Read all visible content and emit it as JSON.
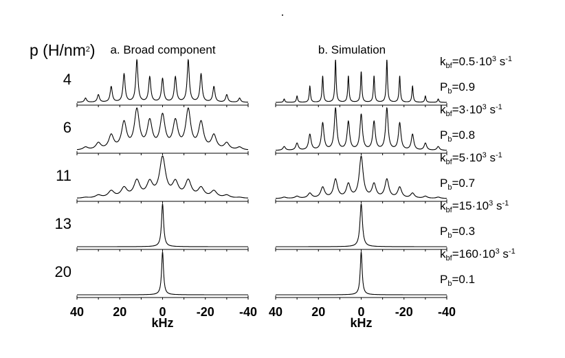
{
  "figure": {
    "y_label": "p (H/nm²)",
    "y_label_text": "p (H/nm",
    "y_label_sup": "2",
    "y_label_close": ")",
    "panel_titles": [
      "a. Broad component",
      "b. Simulation"
    ],
    "x_label": "kHz",
    "x_ticks": [
      "40",
      "20",
      "0",
      "-20",
      "-40"
    ]
  },
  "chart_data": {
    "type": "line",
    "description_of_axes": "",
    "xlabel": "kHz",
    "xlim": [
      40,
      -40
    ],
    "x_ticks": [
      40,
      20,
      0,
      -20,
      -40
    ],
    "x_minor_ticks": [
      30,
      10,
      -10,
      -30
    ],
    "sideband_offsets_khz": [
      36,
      30,
      24,
      18,
      12,
      6,
      0,
      -6,
      -12,
      -18,
      -24,
      -30,
      -36
    ],
    "panels": [
      "a. Broad component",
      "b. Simulation"
    ],
    "rows": [
      {
        "pressure": "4",
        "k_bf": "0.5·10",
        "k_bf_sup": "3",
        "P_b": "0.9",
        "broad": {
          "linewidth_khz": 0.6,
          "amplitudes": [
            0.1,
            0.18,
            0.37,
            0.67,
            1.0,
            0.6,
            0.56,
            0.6,
            1.0,
            0.67,
            0.37,
            0.18,
            0.1
          ]
        },
        "simulation": {
          "linewidth_khz": 0.35,
          "amplitudes": [
            0.08,
            0.15,
            0.38,
            0.62,
            1.0,
            0.62,
            0.72,
            0.62,
            1.0,
            0.62,
            0.38,
            0.15,
            0.08
          ]
        }
      },
      {
        "pressure": "6",
        "k_bf": "3·10",
        "k_bf_sup": "3",
        "P_b": "0.8",
        "broad": {
          "linewidth_khz": 1.4,
          "amplitudes": [
            0.07,
            0.17,
            0.36,
            0.68,
            1.0,
            0.7,
            0.85,
            0.7,
            1.0,
            0.68,
            0.36,
            0.17,
            0.07
          ]
        },
        "simulation": {
          "linewidth_khz": 0.7,
          "amplitudes": [
            0.09,
            0.17,
            0.38,
            0.65,
            1.0,
            0.68,
            0.85,
            0.68,
            1.0,
            0.65,
            0.38,
            0.17,
            0.09
          ]
        }
      },
      {
        "pressure": "11",
        "k_bf": "5·10",
        "k_bf_sup": "3",
        "P_b": "0.7",
        "broad": {
          "linewidth_khz": 1.7,
          "amplitudes": [
            0.02,
            0.07,
            0.17,
            0.24,
            0.42,
            0.36,
            1.0,
            0.36,
            0.42,
            0.24,
            0.17,
            0.07,
            0.02
          ]
        },
        "simulation": {
          "linewidth_khz": 1.1,
          "amplitudes": [
            0.03,
            0.05,
            0.12,
            0.26,
            0.45,
            0.33,
            1.0,
            0.33,
            0.45,
            0.26,
            0.12,
            0.05,
            0.03
          ]
        }
      },
      {
        "pressure": "13",
        "k_bf": "15·10",
        "k_bf_sup": "3",
        "P_b": "0.3",
        "broad": {
          "linewidth_khz": 0.6,
          "amplitudes": [
            0,
            0,
            0,
            0,
            0,
            0,
            1.0,
            0,
            0,
            0,
            0,
            0,
            0
          ]
        },
        "simulation": {
          "linewidth_khz": 0.7,
          "amplitudes": [
            0,
            0,
            0,
            0,
            0,
            0,
            1.0,
            0,
            0,
            0,
            0,
            0,
            0
          ]
        }
      },
      {
        "pressure": "20",
        "k_bf": "160·10",
        "k_bf_sup": "3",
        "P_b": "0.1",
        "broad": {
          "linewidth_khz": 0.55,
          "amplitudes": [
            0,
            0,
            0,
            0,
            0,
            0,
            1.0,
            0,
            0,
            0,
            0,
            0,
            0
          ]
        },
        "simulation": {
          "linewidth_khz": 0.55,
          "amplitudes": [
            0,
            0,
            0,
            0,
            0,
            0,
            1.0,
            0,
            0,
            0,
            0,
            0,
            0
          ]
        }
      }
    ],
    "k_unit": "s",
    "k_unit_sup": "-1",
    "grid": false
  }
}
